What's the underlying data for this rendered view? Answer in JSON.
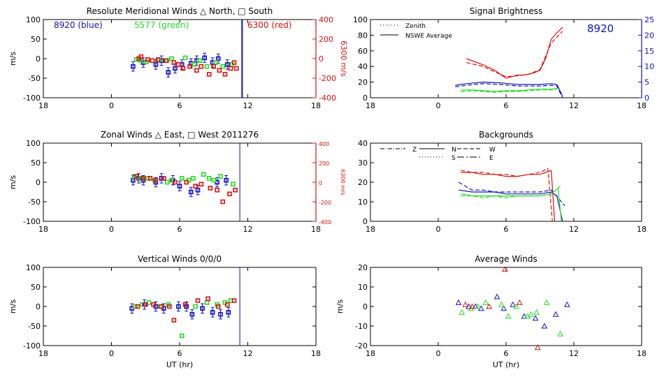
{
  "colors": {
    "blue": "#1010c0",
    "green": "#22dd22",
    "red": "#dd1010",
    "black": "#000000"
  },
  "xaxis_common": {
    "ticks": [
      "18",
      "0",
      "6",
      "12",
      "18"
    ],
    "xlabel": "UT (hr)"
  },
  "chart_data": [
    {
      "id": "meridional",
      "type": "scatter",
      "title": "Resolute Meridional Winds △ North, □ South",
      "ylabel": "m/s",
      "y2label": "6300 m/s",
      "ylim": [
        -100,
        100
      ],
      "y2lim": [
        -400,
        400
      ],
      "yticks": [
        "100",
        "50",
        "0",
        "-50",
        "-100"
      ],
      "y2ticks": [
        "400",
        "200",
        "0",
        "-200",
        "-400"
      ],
      "xticks": [
        "18",
        "0",
        "6",
        "12",
        "18"
      ],
      "xlabel": "",
      "vline_x": 11.5,
      "legend_text": [
        {
          "text": "8920 (blue)",
          "color": "#1010c0"
        },
        {
          "text": "5577 (green)",
          "color": "#22dd22"
        },
        {
          "text": "6300 (red)",
          "color": "#dd1010"
        }
      ],
      "series": [
        {
          "name": "8920 (blue)",
          "color": "#1010c0",
          "err": 12,
          "x": [
            1.9,
            2.8,
            3.9,
            4.4,
            5.0,
            5.6,
            6.2,
            7.0,
            7.5,
            8.2,
            8.9,
            9.4,
            10.2
          ],
          "y": [
            -20,
            -10,
            -15,
            -5,
            -35,
            -25,
            -15,
            -12,
            -5,
            2,
            -10,
            0,
            -15
          ]
        },
        {
          "name": "5577 (green)",
          "color": "#22dd22",
          "x": [
            2.2,
            2.6,
            3.1,
            4.2,
            4.9,
            5.3,
            6.5,
            7.3,
            7.8,
            8.4,
            9.2,
            9.8,
            10.6
          ],
          "y": [
            -2,
            -5,
            -8,
            -3,
            -5,
            0,
            2,
            -15,
            -5,
            -20,
            -10,
            -20,
            -15
          ]
        },
        {
          "name": "6300 (red)",
          "color": "#dd1010",
          "axis": "right",
          "x": [
            2.4,
            2.6,
            3.2,
            3.6,
            4.1,
            4.8,
            5.5,
            5.9,
            6.3,
            6.9,
            7.5,
            7.9,
            8.6,
            9.0,
            9.5,
            10.0,
            10.5,
            10.8,
            11.0
          ],
          "y": [
            0,
            20,
            -10,
            -20,
            -10,
            -20,
            -40,
            -60,
            -100,
            -80,
            -120,
            -80,
            -160,
            -80,
            -120,
            -160,
            -100,
            -40,
            -100
          ]
        }
      ]
    },
    {
      "id": "brightness",
      "type": "line",
      "title": "Signal Brightness",
      "ylabel": "",
      "ylim": [
        0,
        100
      ],
      "y2lim": [
        0,
        25
      ],
      "yticks": [
        "100",
        "80",
        "60",
        "40",
        "20",
        "0"
      ],
      "y2ticks": [
        "25",
        "20",
        "15",
        "10",
        "5",
        "0"
      ],
      "xticks": [
        "18",
        "0",
        "6",
        "12",
        "18"
      ],
      "xlabel": "",
      "big_label": {
        "text": "8920",
        "color": "#1010c0"
      },
      "legend": [
        {
          "label": "Zenith",
          "dash": "dot"
        },
        {
          "label": "NSWE Average",
          "dash": "solid"
        }
      ],
      "series": [
        {
          "color": "#dd1010",
          "dash": "solid",
          "x": [
            2.5,
            4.0,
            5.0,
            5.5,
            6.0,
            6.5,
            7.0,
            7.5,
            8.0,
            8.5,
            9.0,
            9.5,
            10.0,
            10.5,
            11.0
          ],
          "y": [
            50,
            42,
            35,
            30,
            25,
            27,
            29,
            29,
            30,
            32,
            35,
            50,
            75,
            83,
            90
          ]
        },
        {
          "color": "#dd1010",
          "dash": "dash",
          "x": [
            2.5,
            4.0,
            5.0,
            6.0,
            7.0,
            8.0,
            9.0,
            10.0,
            11.0
          ],
          "y": [
            45,
            40,
            33,
            27,
            28,
            30,
            36,
            70,
            85
          ]
        },
        {
          "color": "#1010c0",
          "dash": "solid",
          "x": [
            1.5,
            2.5,
            4.0,
            5.5,
            7.0,
            8.0,
            9.0,
            10.0,
            10.5,
            11.0
          ],
          "y": [
            16,
            18,
            20,
            19,
            17,
            17,
            17,
            18,
            17,
            2
          ]
        },
        {
          "color": "#1010c0",
          "dash": "dash",
          "x": [
            1.5,
            2.5,
            4.0,
            5.5,
            7.0,
            8.0,
            9.0,
            10.0,
            10.5,
            11.0
          ],
          "y": [
            14,
            16,
            18,
            17,
            15,
            15,
            15,
            16,
            15,
            0
          ]
        },
        {
          "color": "#22dd22",
          "dash": "solid",
          "x": [
            2.0,
            3.0,
            4.0,
            5.0,
            6.0,
            7.0,
            8.0,
            9.0,
            10.0,
            10.5
          ],
          "y": [
            10,
            10,
            9,
            8,
            9,
            9,
            10,
            11,
            11,
            12
          ]
        },
        {
          "color": "#22dd22",
          "dash": "dash",
          "x": [
            2.0,
            3.0,
            4.0,
            5.0,
            6.0,
            7.0,
            8.0,
            9.0,
            10.0,
            10.5
          ],
          "y": [
            8,
            9,
            8,
            7,
            8,
            8,
            9,
            10,
            10,
            11
          ]
        }
      ]
    },
    {
      "id": "zonal",
      "type": "scatter",
      "title": "Zonal Winds △ East, □ West 2011276",
      "ylabel": "m/s",
      "y2label": "6300 m/s",
      "ylim": [
        -100,
        100
      ],
      "y2lim": [
        -400,
        400
      ],
      "yticks": [
        "100",
        "50",
        "0",
        "-50",
        "-100"
      ],
      "y2ticks": [
        "400",
        "200",
        "0",
        "-200",
        "-400"
      ],
      "xticks": [
        "18",
        "0",
        "6",
        "12",
        "18"
      ],
      "xlabel": "",
      "vline_x": 11.3,
      "series": [
        {
          "name": "8920",
          "color": "#1010c0",
          "err": 12,
          "x": [
            1.9,
            2.4,
            2.8,
            3.9,
            4.4,
            5.4,
            6.0,
            7.0,
            7.6,
            9.3,
            10.1
          ],
          "y": [
            5,
            10,
            5,
            0,
            10,
            5,
            -10,
            -25,
            -20,
            0,
            5
          ]
        },
        {
          "name": "5577",
          "color": "#22dd22",
          "x": [
            2.0,
            2.6,
            3.2,
            3.8,
            4.9,
            5.3,
            6.2,
            6.8,
            7.2,
            8.1,
            8.6,
            9.0,
            9.6,
            10.7
          ],
          "y": [
            15,
            10,
            10,
            5,
            0,
            5,
            10,
            5,
            10,
            20,
            10,
            5,
            15,
            -5
          ]
        },
        {
          "name": "6300",
          "color": "#dd1010",
          "axis": "right",
          "x": [
            2.2,
            2.8,
            3.4,
            3.9,
            4.6,
            5.6,
            6.6,
            7.4,
            7.9,
            8.7,
            9.3,
            9.8,
            10.4,
            10.9
          ],
          "y": [
            60,
            40,
            40,
            20,
            40,
            0,
            0,
            -40,
            -20,
            -60,
            -80,
            -200,
            -120,
            -80
          ]
        }
      ]
    },
    {
      "id": "backgrounds",
      "type": "line",
      "title": "Backgrounds",
      "ylabel": "",
      "ylim": [
        0,
        40
      ],
      "yticks": [
        "40",
        "30",
        "20",
        "10",
        "0"
      ],
      "xticks": [
        "18",
        "0",
        "6",
        "12",
        "18"
      ],
      "xlabel": "",
      "legend": [
        {
          "label": "Z",
          "dash": "dashdot"
        },
        {
          "label": "N",
          "dash": "solid"
        },
        {
          "label": "W",
          "dash": "dash"
        },
        {
          "label": "S",
          "dash": "dot"
        },
        {
          "label": "E",
          "dash": "dashdotlong"
        }
      ],
      "series": [
        {
          "color": "#dd1010",
          "dash": "solid",
          "x": [
            2.0,
            3.0,
            4.0,
            5.0,
            6.0,
            7.0,
            8.0,
            9.0,
            9.5,
            10.0,
            10.3
          ],
          "y": [
            25,
            25,
            24,
            24,
            23,
            23,
            24,
            24,
            25,
            26,
            0
          ]
        },
        {
          "color": "#dd1010",
          "dash": "dash",
          "x": [
            2.0,
            3.0,
            4.0,
            5.0,
            6.0,
            7.0,
            8.0,
            9.0,
            9.7,
            10.1
          ],
          "y": [
            26,
            25,
            25,
            24,
            24,
            23,
            24,
            25,
            27,
            0
          ]
        },
        {
          "color": "#1010c0",
          "dash": "solid",
          "x": [
            1.8,
            3.0,
            4.0,
            5.0,
            6.0,
            7.0,
            8.0,
            9.0,
            10.0,
            10.5,
            11.0
          ],
          "y": [
            16,
            15,
            15,
            15,
            14,
            14,
            14,
            14,
            15,
            13,
            0
          ]
        },
        {
          "color": "#1010c0",
          "dash": "dash",
          "x": [
            1.8,
            3.0,
            4.0,
            5.0,
            6.0,
            7.0,
            8.0,
            9.0,
            10.0,
            10.6,
            11.2
          ],
          "y": [
            20,
            16,
            16,
            15,
            15,
            15,
            15,
            15,
            16,
            12,
            8
          ]
        },
        {
          "color": "#22dd22",
          "dash": "solid",
          "x": [
            2.0,
            3.0,
            4.0,
            5.0,
            6.0,
            7.0,
            8.0,
            9.0,
            10.0,
            10.6,
            10.9
          ],
          "y": [
            14,
            13,
            13,
            13,
            13,
            13,
            13,
            13,
            14,
            17,
            0
          ]
        },
        {
          "color": "#22dd22",
          "dash": "dash",
          "x": [
            2.0,
            3.0,
            4.0,
            5.0,
            6.0,
            7.0,
            8.0,
            9.0,
            10.0,
            10.8
          ],
          "y": [
            13,
            13,
            12,
            13,
            12,
            13,
            13,
            13,
            14,
            18
          ]
        }
      ]
    },
    {
      "id": "vertical",
      "type": "scatter",
      "title": "Vertical Winds 0/0/0",
      "ylabel": "m/s",
      "ylim": [
        -100,
        100
      ],
      "yticks": [
        "100",
        "50",
        "0",
        "-50",
        "-100"
      ],
      "xticks": [
        "18",
        "0",
        "6",
        "12",
        "18"
      ],
      "xlabel": "UT (hr)",
      "vline_x": 11.3,
      "series": [
        {
          "name": "8920",
          "color": "#1010c0",
          "err": 12,
          "x": [
            1.8,
            2.9,
            3.9,
            4.6,
            5.9,
            6.6,
            7.1,
            8.0,
            8.9,
            9.6,
            10.3
          ],
          "y": [
            -5,
            5,
            0,
            -5,
            0,
            0,
            -20,
            -5,
            -15,
            -20,
            -15
          ]
        },
        {
          "name": "5577",
          "color": "#22dd22",
          "x": [
            2.1,
            2.7,
            3.3,
            4.3,
            5.0,
            6.2,
            7.4,
            8.4,
            9.3,
            10.0,
            10.5
          ],
          "y": [
            0,
            5,
            10,
            0,
            5,
            -75,
            0,
            10,
            5,
            10,
            15
          ]
        },
        {
          "name": "6300",
          "color": "#dd1010",
          "x": [
            2.3,
            3.0,
            3.7,
            4.4,
            5.1,
            5.5,
            6.5,
            7.6,
            8.5,
            9.4,
            10.2,
            10.8
          ],
          "y": [
            0,
            5,
            5,
            0,
            0,
            -35,
            5,
            15,
            20,
            0,
            5,
            15
          ]
        }
      ]
    },
    {
      "id": "average",
      "type": "scatter",
      "title": "Average Winds",
      "ylabel": "m/s",
      "ylim": [
        -20,
        20
      ],
      "yticks": [
        "20",
        "10",
        "0",
        "-10",
        "-20"
      ],
      "xticks": [
        "18",
        "0",
        "6",
        "12",
        "18"
      ],
      "xlabel": "UT (hr)",
      "series": [
        {
          "name": "8920",
          "color": "#1010c0",
          "x": [
            1.8,
            2.7,
            3.3,
            3.8,
            5.2,
            5.8,
            6.6,
            7.6,
            8.6,
            9.4,
            10.4,
            11.4
          ],
          "y": [
            2,
            0,
            0,
            -1,
            5,
            -1,
            1,
            -5,
            -6,
            -10,
            -4,
            1
          ]
        },
        {
          "name": "5577",
          "color": "#22dd22",
          "x": [
            2.1,
            2.9,
            3.5,
            4.2,
            5.6,
            6.2,
            6.9,
            7.9,
            8.2,
            8.7,
            9.6,
            10.8
          ],
          "y": [
            -3,
            -1,
            0,
            2,
            1,
            -5,
            0,
            -5,
            -4,
            -3,
            2,
            -14
          ]
        },
        {
          "name": "6300",
          "color": "#dd1010",
          "x": [
            2.4,
            3.0,
            4.5,
            5.9,
            7.2,
            8.8
          ],
          "y": [
            1,
            0,
            0,
            19,
            2,
            -21
          ]
        }
      ]
    }
  ]
}
